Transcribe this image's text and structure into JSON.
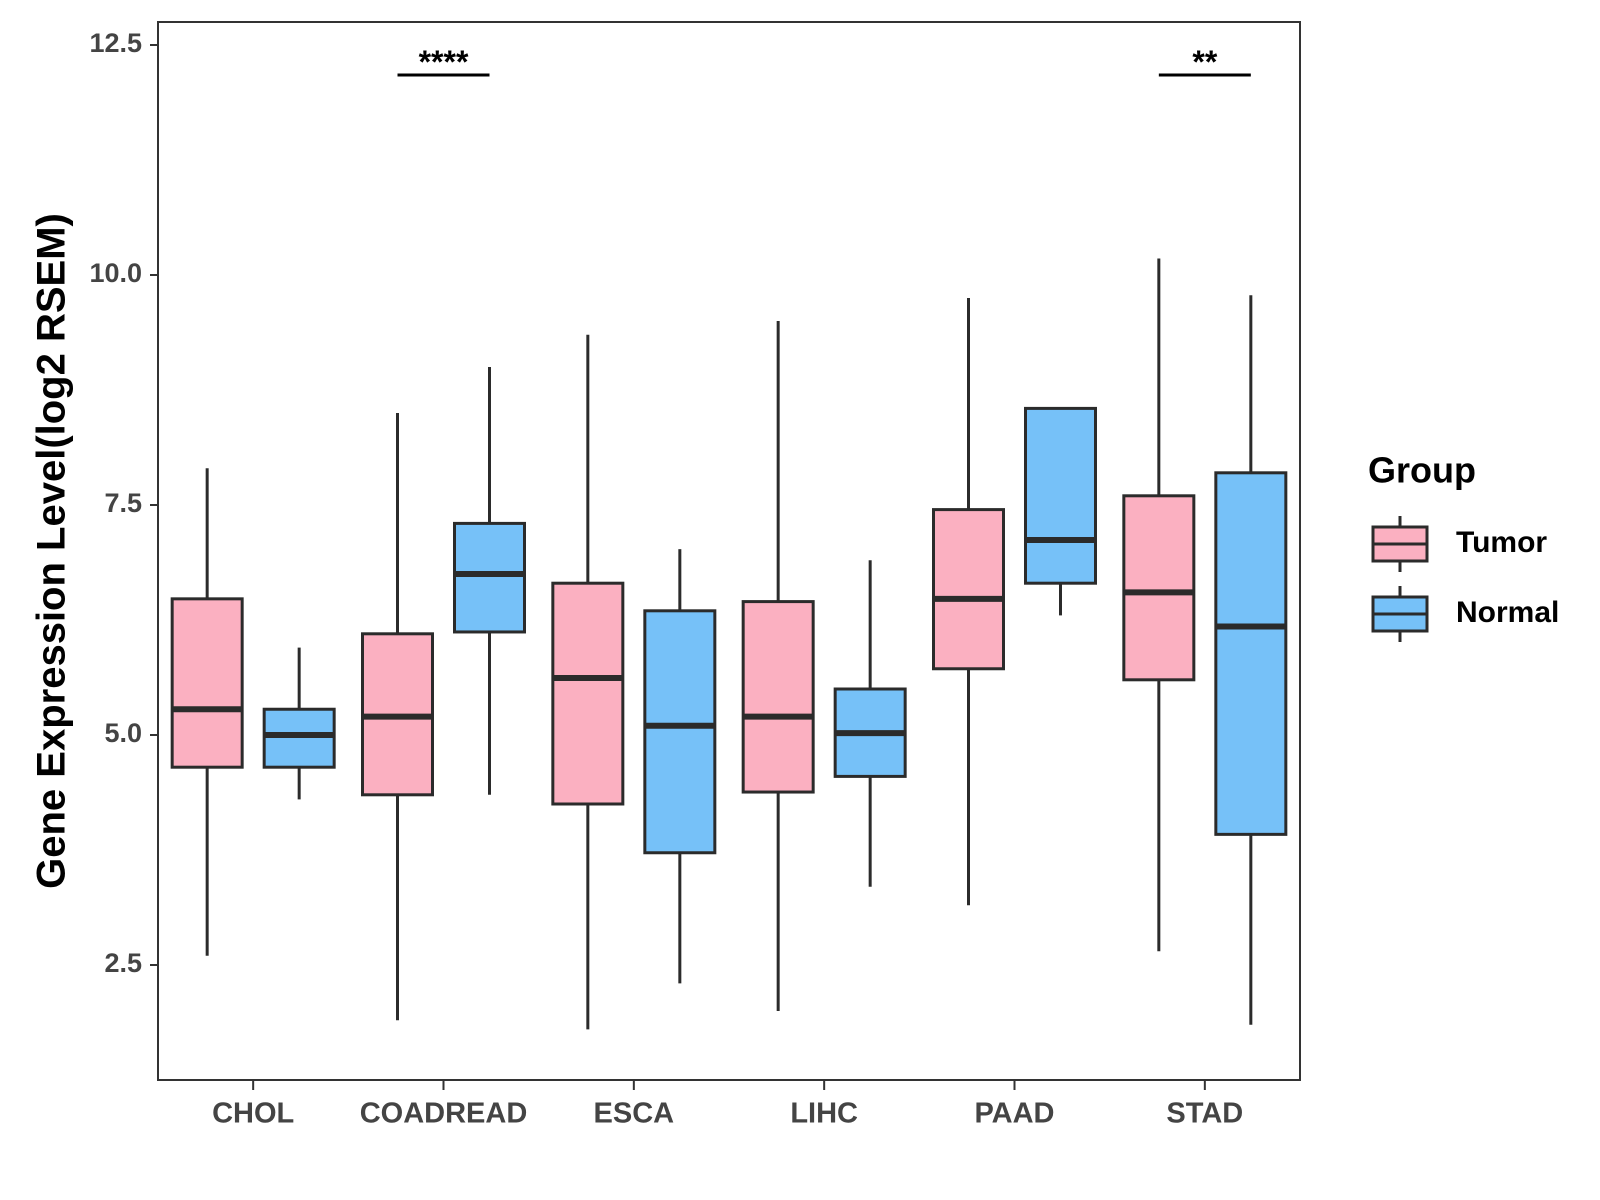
{
  "chart_data": {
    "type": "boxplot",
    "title": "",
    "xlabel": "",
    "ylabel": "Gene Expression Level(log2 RSEM)",
    "ylim": [
      1.25,
      12.75
    ],
    "yticks": [
      2.5,
      5.0,
      7.5,
      10.0,
      12.5
    ],
    "ytick_labels": [
      "2.5",
      "5.0",
      "7.5",
      "10.0",
      "12.5"
    ],
    "categories": [
      "CHOL",
      "COADREAD",
      "ESCA",
      "LIHC",
      "PAAD",
      "STAD"
    ],
    "series": [
      {
        "name": "Tumor",
        "color": "#FBB0C1",
        "boxes": [
          {
            "min": 2.6,
            "q1": 4.65,
            "median": 5.28,
            "q3": 6.48,
            "max": 7.9
          },
          {
            "min": 1.9,
            "q1": 4.35,
            "median": 5.2,
            "q3": 6.1,
            "max": 8.5
          },
          {
            "min": 1.8,
            "q1": 4.25,
            "median": 5.62,
            "q3": 6.65,
            "max": 9.35
          },
          {
            "min": 2.0,
            "q1": 4.38,
            "median": 5.2,
            "q3": 6.45,
            "max": 9.5
          },
          {
            "min": 3.15,
            "q1": 5.72,
            "median": 6.48,
            "q3": 7.45,
            "max": 9.75
          },
          {
            "min": 2.65,
            "q1": 5.6,
            "median": 6.55,
            "q3": 7.6,
            "max": 10.18
          }
        ]
      },
      {
        "name": "Normal",
        "color": "#76C1F8",
        "boxes": [
          {
            "min": 4.3,
            "q1": 4.65,
            "median": 5.0,
            "q3": 5.28,
            "max": 5.95
          },
          {
            "min": 4.35,
            "q1": 6.12,
            "median": 6.75,
            "q3": 7.3,
            "max": 9.0
          },
          {
            "min": 2.3,
            "q1": 3.72,
            "median": 5.1,
            "q3": 6.35,
            "max": 7.02
          },
          {
            "min": 3.35,
            "q1": 4.55,
            "median": 5.02,
            "q3": 5.5,
            "max": 6.9
          },
          {
            "min": 6.3,
            "q1": 6.65,
            "median": 7.12,
            "q3": 8.55,
            "max": 8.55
          },
          {
            "min": 1.85,
            "q1": 3.92,
            "median": 6.18,
            "q3": 7.85,
            "max": 9.78
          }
        ]
      }
    ],
    "significance": [
      {
        "category": "COADREAD",
        "label": "****"
      },
      {
        "category": "STAD",
        "label": "**"
      }
    ],
    "legend": {
      "title": "Group",
      "position": "right",
      "entries": [
        "Tumor",
        "Normal"
      ]
    },
    "colors": {
      "box_stroke": "#2b2b2b",
      "axis": "#333333"
    }
  }
}
